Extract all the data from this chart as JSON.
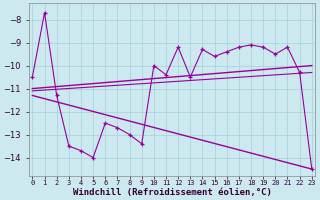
{
  "x": [
    0,
    1,
    2,
    3,
    4,
    5,
    6,
    7,
    8,
    9,
    10,
    11,
    12,
    13,
    14,
    15,
    16,
    17,
    18,
    19,
    20,
    21,
    22,
    23
  ],
  "line_zigzag": [
    -10.5,
    -7.7,
    -11.3,
    -13.5,
    -13.7,
    -14.0,
    -12.5,
    -12.7,
    -13.0,
    -13.4,
    -10.0,
    -10.4,
    -9.2,
    -10.5,
    -9.3,
    -9.6,
    -9.4,
    -9.2,
    -9.1,
    -9.2,
    -9.5,
    -9.2,
    -10.3,
    -14.5
  ],
  "line_upper_trend_x": [
    0,
    23
  ],
  "line_upper_trend_y": [
    -11.0,
    -10.0
  ],
  "line_lower_trend_x": [
    0,
    23
  ],
  "line_lower_trend_y": [
    -11.3,
    -14.5
  ],
  "line_mid_trend_x": [
    0,
    23
  ],
  "line_mid_trend_y": [
    -11.1,
    -10.3
  ],
  "color": "#990099",
  "bg_color": "#cce9f0",
  "grid_color": "#aad4dc",
  "xlabel": "Windchill (Refroidissement éolien,°C)",
  "xlabel_fontsize": 6.5,
  "ylabel_ticks": [
    -8,
    -9,
    -10,
    -11,
    -12,
    -13,
    -14
  ],
  "xtick_labels": [
    "0",
    "1",
    "2",
    "3",
    "4",
    "5",
    "6",
    "7",
    "8",
    "9",
    "10",
    "11",
    "12",
    "13",
    "14",
    "15",
    "16",
    "17",
    "18",
    "19",
    "20",
    "21",
    "22",
    "23"
  ],
  "ylim": [
    -14.8,
    -7.3
  ],
  "xlim": [
    -0.3,
    23.3
  ]
}
